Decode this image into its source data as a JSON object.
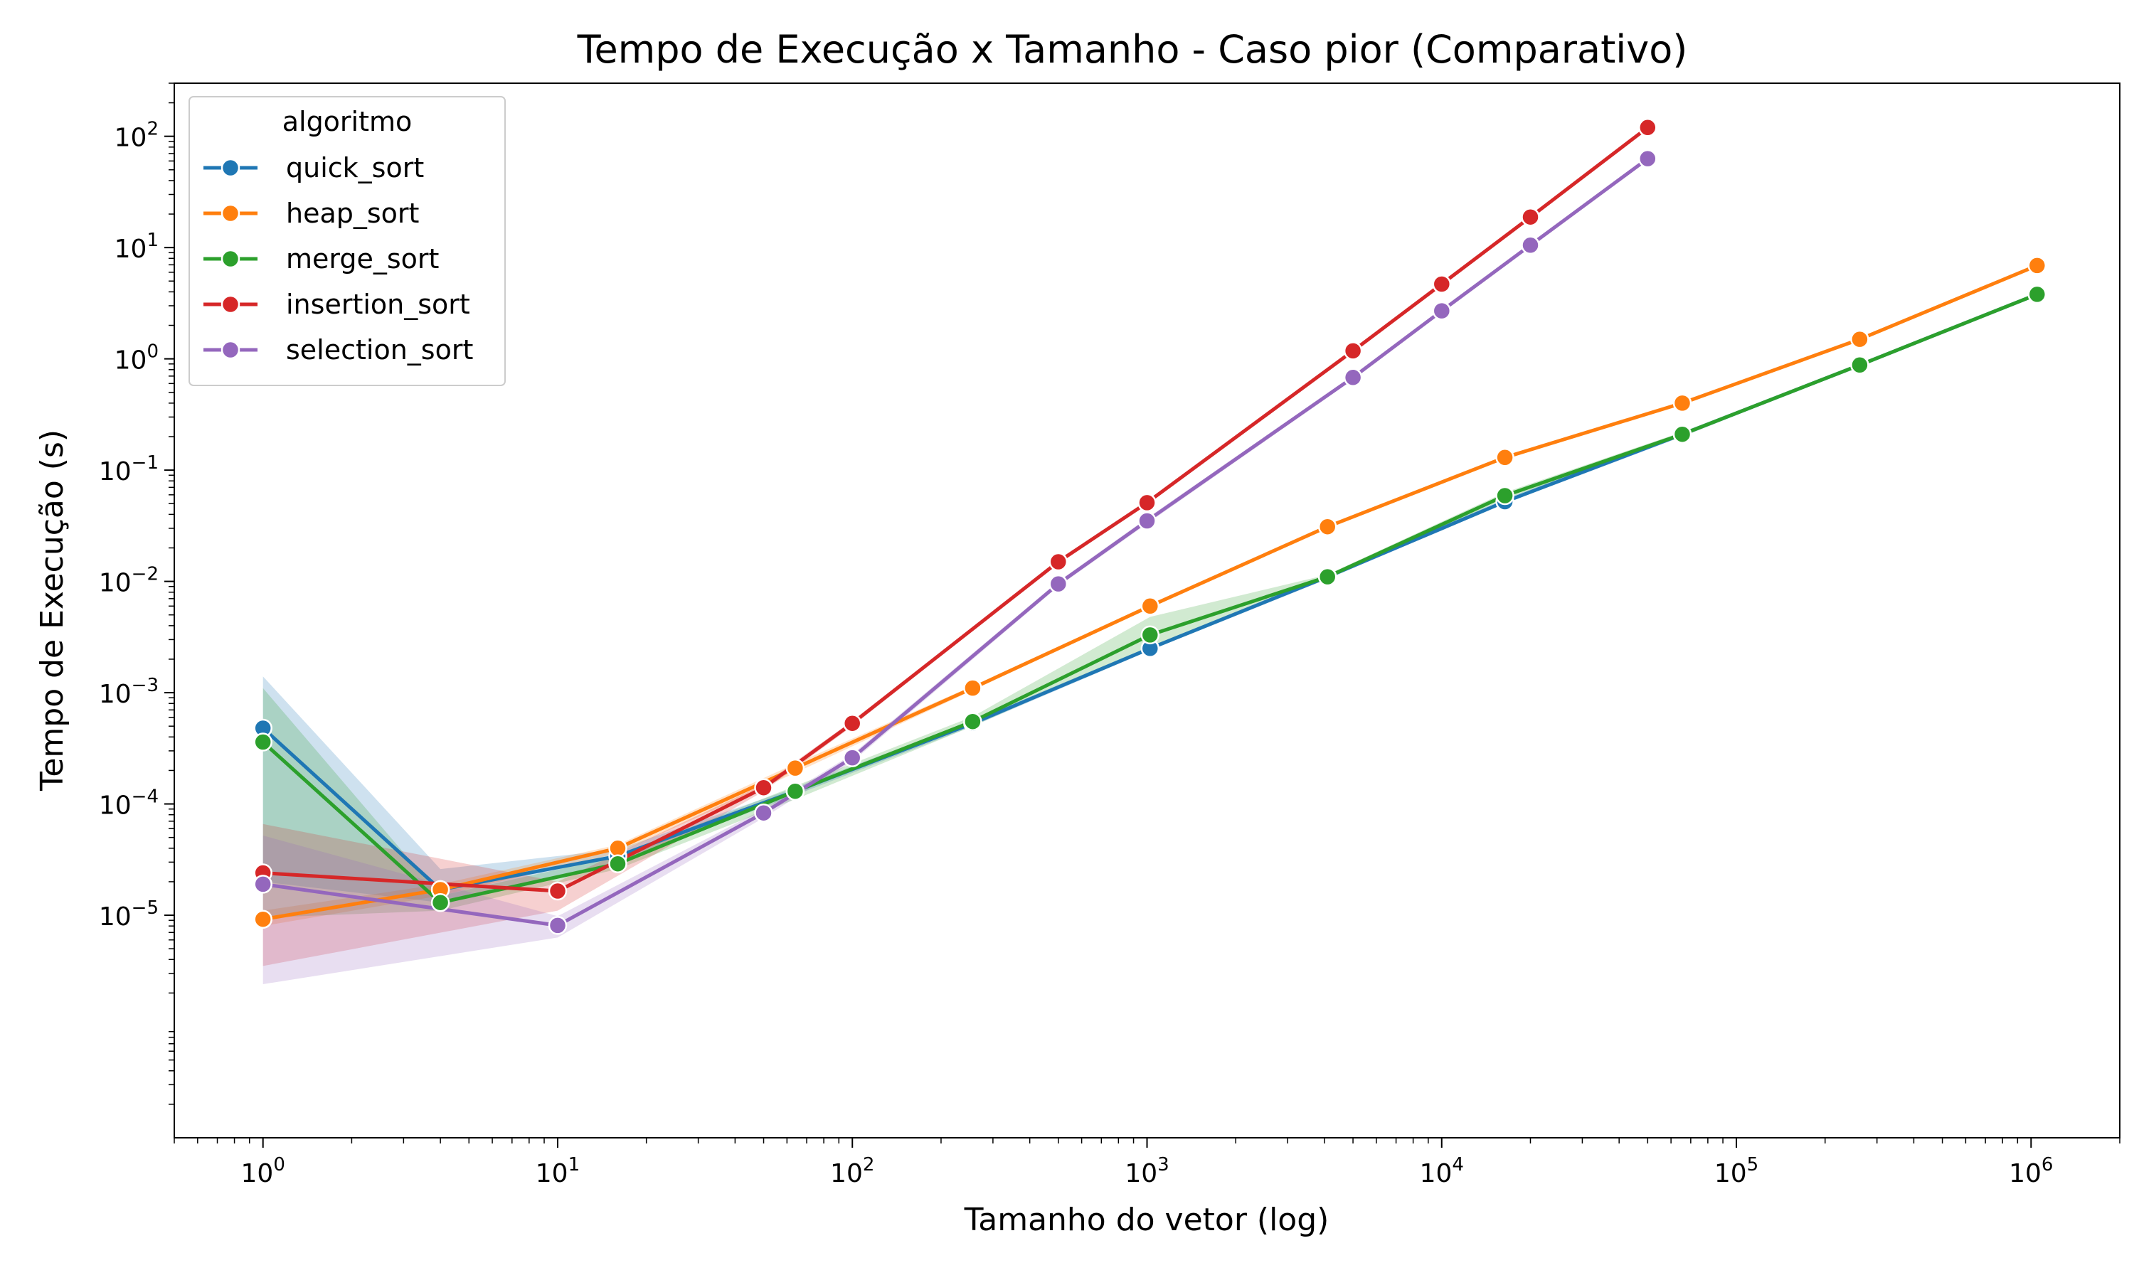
{
  "chart_data": {
    "type": "line",
    "title": "Tempo de Execução x Tamanho - Caso pior (Comparativo)",
    "xlabel": "Tamanho do vetor (log)",
    "ylabel": "Tempo de Execução (s)",
    "xscale": "log",
    "yscale": "log",
    "xlim": [
      0.5,
      2000000
    ],
    "ylim": [
      1e-07,
      300
    ],
    "x_ticks": [
      {
        "base": "10",
        "exp": "0",
        "value": 1
      },
      {
        "base": "10",
        "exp": "1",
        "value": 10
      },
      {
        "base": "10",
        "exp": "2",
        "value": 100
      },
      {
        "base": "10",
        "exp": "3",
        "value": 1000
      },
      {
        "base": "10",
        "exp": "4",
        "value": 10000
      },
      {
        "base": "10",
        "exp": "5",
        "value": 100000
      },
      {
        "base": "10",
        "exp": "6",
        "value": 1000000
      }
    ],
    "y_ticks": [
      {
        "base": "10",
        "exp": "−5",
        "value": 1e-05
      },
      {
        "base": "10",
        "exp": "−4",
        "value": 0.0001
      },
      {
        "base": "10",
        "exp": "−3",
        "value": 0.001
      },
      {
        "base": "10",
        "exp": "−2",
        "value": 0.01
      },
      {
        "base": "10",
        "exp": "−1",
        "value": 0.1
      },
      {
        "base": "10",
        "exp": "0",
        "value": 1
      },
      {
        "base": "10",
        "exp": "1",
        "value": 10
      },
      {
        "base": "10",
        "exp": "2",
        "value": 100
      }
    ],
    "grid": false,
    "legend": {
      "title": "algoritmo",
      "position": "top-left"
    },
    "series": [
      {
        "name": "quick_sort",
        "color": "#1f77b4",
        "x": [
          1,
          4,
          16,
          64,
          256,
          1024,
          4096,
          16384,
          65536,
          262144,
          1048576
        ],
        "y": [
          0.00048,
          1.7e-05,
          3.4e-05,
          0.00013,
          0.00053,
          0.0025,
          0.011,
          0.052,
          0.21,
          0.88,
          3.8
        ],
        "ci_low": [
          2e-05,
          1.3e-05,
          3e-05,
          0.00012,
          0.0005,
          0.0024,
          0.0105,
          0.05,
          0.2,
          0.86,
          3.7
        ],
        "ci_high": [
          0.0014,
          2.6e-05,
          3.9e-05,
          0.00014,
          0.00056,
          0.0026,
          0.0115,
          0.055,
          0.22,
          0.9,
          3.9
        ]
      },
      {
        "name": "heap_sort",
        "color": "#ff7f0e",
        "x": [
          1,
          4,
          16,
          64,
          256,
          1024,
          4096,
          16384,
          65536,
          262144,
          1048576
        ],
        "y": [
          9.2e-06,
          1.7e-05,
          4e-05,
          0.00021,
          0.0011,
          0.006,
          0.031,
          0.13,
          0.4,
          1.5,
          6.9
        ],
        "ci_low": [
          8e-06,
          1.5e-05,
          3.6e-05,
          0.00019,
          0.00105,
          0.0058,
          0.03,
          0.125,
          0.39,
          1.45,
          6.7
        ],
        "ci_high": [
          1.1e-05,
          1.9e-05,
          4.3e-05,
          0.00023,
          0.00115,
          0.0062,
          0.032,
          0.135,
          0.41,
          1.55,
          7.1
        ]
      },
      {
        "name": "merge_sort",
        "color": "#2ca02c",
        "x": [
          1,
          4,
          16,
          64,
          256,
          1024,
          4096,
          16384,
          65536,
          262144,
          1048576
        ],
        "y": [
          0.00036,
          1.3e-05,
          2.9e-05,
          0.00013,
          0.00055,
          0.0033,
          0.011,
          0.059,
          0.21,
          0.88,
          3.8
        ],
        "ci_low": [
          9.5e-06,
          1.1e-05,
          2.6e-05,
          0.00011,
          0.0005,
          0.0025,
          0.0105,
          0.055,
          0.2,
          0.86,
          3.7
        ],
        "ci_high": [
          0.0011,
          1.5e-05,
          3.4e-05,
          0.000145,
          0.00061,
          0.0048,
          0.0115,
          0.063,
          0.22,
          0.9,
          3.9
        ]
      },
      {
        "name": "insertion_sort",
        "color": "#d62728",
        "x": [
          1,
          10,
          50,
          100,
          500,
          1000,
          5000,
          10000,
          20000,
          50000
        ],
        "y": [
          2.4e-05,
          1.65e-05,
          0.00014,
          0.00053,
          0.015,
          0.051,
          1.18,
          4.7,
          18.8,
          120
        ],
        "ci_low": [
          3.5e-06,
          1.1e-05,
          0.00013,
          0.0005,
          0.0145,
          0.05,
          1.15,
          4.6,
          18.5,
          118
        ],
        "ci_high": [
          6.6e-05,
          2e-05,
          0.00015,
          0.00056,
          0.0155,
          0.052,
          1.2,
          4.8,
          19.1,
          122
        ]
      },
      {
        "name": "selection_sort",
        "color": "#9467bd",
        "x": [
          1,
          10,
          50,
          100,
          500,
          1000,
          5000,
          10000,
          20000,
          50000
        ],
        "y": [
          1.9e-05,
          8.1e-06,
          8.3e-05,
          0.00026,
          0.0095,
          0.035,
          0.68,
          2.7,
          10.5,
          63
        ],
        "ci_low": [
          2.4e-06,
          6.3e-06,
          7.5e-05,
          0.00024,
          0.009,
          0.033,
          0.65,
          2.6,
          10.2,
          61
        ],
        "ci_high": [
          5.2e-05,
          9.8e-06,
          9e-05,
          0.00028,
          0.01,
          0.037,
          0.71,
          2.8,
          10.8,
          65
        ]
      }
    ]
  }
}
